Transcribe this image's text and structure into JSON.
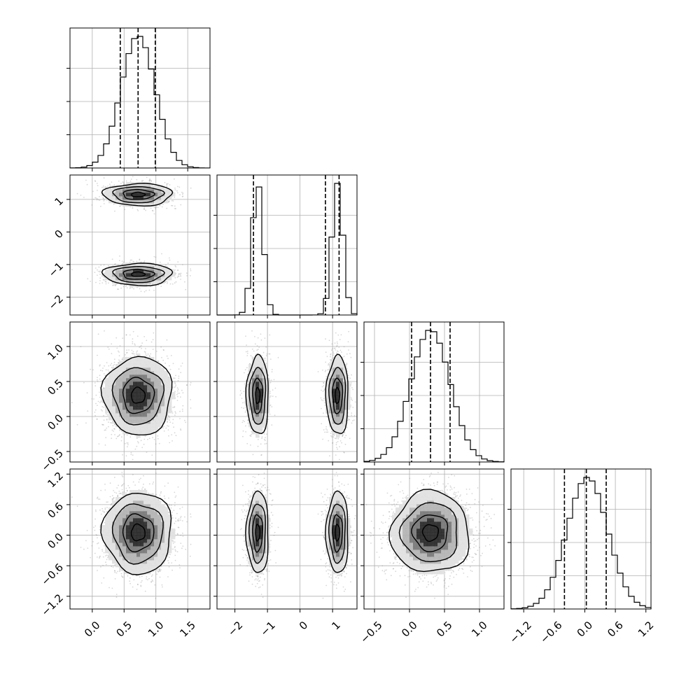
{
  "chart_data": {
    "type": "corner",
    "grid": true,
    "n_params": 4,
    "panel_ranges": [
      [
        -0.35,
        1.85
      ],
      [
        -2.55,
        1.75
      ],
      [
        -0.65,
        1.35
      ],
      [
        -1.45,
        1.3
      ]
    ],
    "tick_labels": [
      {
        "values": [
          0.0,
          0.5,
          1.0,
          1.5
        ],
        "labels": [
          "0.0",
          "0.5",
          "1.0",
          "1.5"
        ]
      },
      {
        "values": [
          -2,
          -1,
          0,
          1
        ],
        "labels": [
          "−2",
          "−1",
          "0",
          "1"
        ]
      },
      {
        "values": [
          -0.5,
          0.0,
          0.5,
          1.0
        ],
        "labels": [
          "−0.5",
          "0.0",
          "0.5",
          "1.0"
        ]
      },
      {
        "values": [
          -1.2,
          -0.6,
          0.0,
          0.6,
          1.2
        ],
        "labels": [
          "−1.2",
          "−0.6",
          "0.0",
          "0.6",
          "1.2"
        ]
      }
    ],
    "y_tick_labels": [
      null,
      {
        "values": [
          -2,
          -1,
          0,
          1
        ],
        "labels": [
          "−2",
          "−1",
          "0",
          "1"
        ]
      },
      {
        "values": [
          -0.5,
          0.0,
          0.5,
          1.0
        ],
        "labels": [
          "−0.5",
          "0.0",
          "0.5",
          "1.0"
        ]
      },
      {
        "values": [
          -1.2,
          -0.6,
          0.0,
          0.6,
          1.2
        ],
        "labels": [
          "−1.2",
          "−0.6",
          "0.0",
          "0.6",
          "1.2"
        ]
      }
    ],
    "distributions": [
      {
        "components": [
          {
            "w": 1.0,
            "mu": 0.72,
            "sd": 0.27
          }
        ]
      },
      {
        "components": [
          {
            "w": 0.5,
            "mu": -1.3,
            "sd": 0.17
          },
          {
            "w": 0.5,
            "mu": 1.15,
            "sd": 0.17
          }
        ]
      },
      {
        "components": [
          {
            "w": 1.0,
            "mu": 0.3,
            "sd": 0.28
          }
        ]
      },
      {
        "components": [
          {
            "w": 1.0,
            "mu": 0.05,
            "sd": 0.4
          }
        ]
      }
    ],
    "quantile_lines": [
      [
        0.44,
        0.72,
        0.99
      ],
      [
        -1.43,
        0.78,
        1.2
      ],
      [
        0.03,
        0.3,
        0.58
      ],
      [
        -0.4,
        0.03,
        0.42
      ]
    ],
    "histogram_bins": 25,
    "contour_levels": 4,
    "colors": {
      "line": "#000000",
      "points": "#8c8c8c",
      "grid": "#b0b0b0"
    }
  }
}
